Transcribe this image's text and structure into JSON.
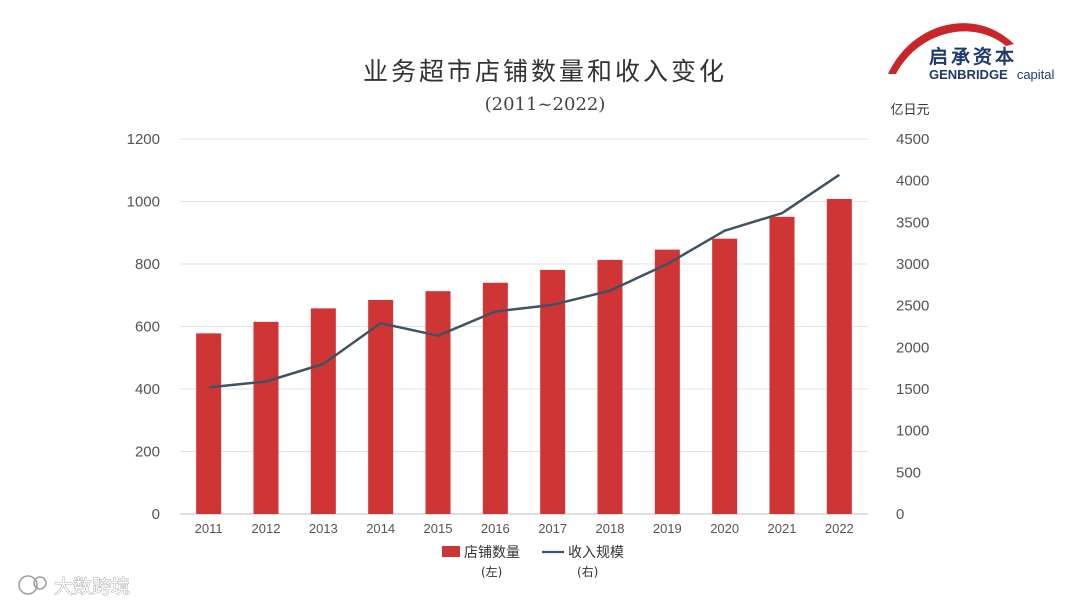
{
  "chart_data": {
    "type": "bar",
    "title": "业务超市店铺数量和收入变化",
    "subtitle": "(2011~2022)",
    "categories": [
      "2011",
      "2012",
      "2013",
      "2014",
      "2015",
      "2016",
      "2017",
      "2018",
      "2019",
      "2020",
      "2021",
      "2022"
    ],
    "series": [
      {
        "name": "店铺数量",
        "axis": "left",
        "type": "bar",
        "note": "(左)",
        "values": [
          578,
          615,
          658,
          685,
          713,
          740,
          781,
          813,
          846,
          881,
          951,
          1008
        ]
      },
      {
        "name": "收入规模",
        "axis": "right",
        "type": "line",
        "note": "(右)",
        "values": [
          1520,
          1590,
          1800,
          2290,
          2140,
          2430,
          2510,
          2680,
          3000,
          3400,
          3610,
          4070
        ]
      }
    ],
    "y_left": {
      "min": 0,
      "max": 1200,
      "ticks": [
        0,
        200,
        400,
        600,
        800,
        1000,
        1200
      ]
    },
    "y_right": {
      "min": 0,
      "max": 4500,
      "unit": "亿日元",
      "ticks": [
        0,
        500,
        1000,
        1500,
        2000,
        2500,
        3000,
        3500,
        4000,
        4500
      ]
    },
    "grid": true,
    "legend_position": "bottom"
  },
  "colors": {
    "bar": "#d03535",
    "line": "#3f5363",
    "grid": "#e3e3e3",
    "logo_arc": "#c9262c",
    "logo_text": "#1e3a6e"
  },
  "logo": {
    "cn": "启承资本",
    "en_bold": "GENBRIDGE",
    "en_light": "capital"
  },
  "watermark": {
    "text": "大数跨境"
  }
}
